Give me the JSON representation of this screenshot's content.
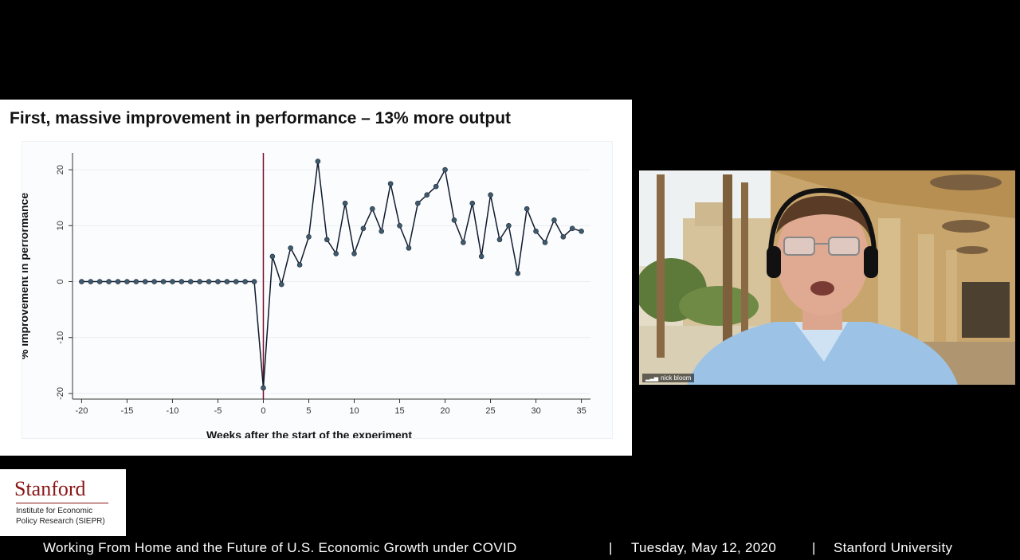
{
  "slide": {
    "title": "First, massive improvement in performance – 13% more output"
  },
  "chart_data": {
    "type": "line",
    "title": "First, massive improvement in performance – 13% more output",
    "xlabel": "Weeks after the start of the experiment",
    "ylabel": "% Improvement in performance",
    "xlim": [
      -21,
      36
    ],
    "ylim": [
      -21,
      23
    ],
    "xticks": [
      -20,
      -15,
      -10,
      -5,
      0,
      5,
      10,
      15,
      20,
      25,
      30,
      35
    ],
    "yticks": [
      20,
      10,
      0,
      -10,
      -20
    ],
    "grid": "horizontal",
    "vline_at": 0,
    "series": [
      {
        "x": [
          -20,
          -19,
          -18,
          -17,
          -16,
          -15,
          -14,
          -13,
          -12,
          -11,
          -10,
          -9,
          -8,
          -7,
          -6,
          -5,
          -4,
          -3,
          -2,
          -1,
          0,
          1,
          2,
          3,
          4,
          5,
          6,
          7,
          8,
          9,
          10,
          11,
          12,
          13,
          14,
          15,
          16,
          17,
          18,
          19,
          20,
          21,
          22,
          23,
          24,
          25,
          26,
          27,
          28,
          29,
          30,
          31,
          32,
          33,
          34,
          35
        ],
        "values": [
          0,
          0,
          0,
          0,
          0,
          0,
          0,
          0,
          0,
          0,
          0,
          0,
          0,
          0,
          0,
          0,
          0,
          0,
          0,
          0,
          -19,
          4.5,
          -0.5,
          6,
          3,
          8,
          21.5,
          7.5,
          5,
          14,
          5,
          9.5,
          13,
          9,
          17.5,
          10,
          6,
          14,
          15.5,
          17,
          20,
          11,
          7,
          14,
          4.5,
          15.5,
          7.5,
          10,
          1.5,
          13,
          9,
          7,
          11,
          8,
          9.5,
          9
        ]
      }
    ]
  },
  "video": {
    "participant_name": "nick bloom"
  },
  "logo": {
    "wordmark": "Stanford",
    "line1": "Institute for Economic",
    "line2": "Policy Research (SIEPR)"
  },
  "footer": {
    "event_title": "Working From Home and the Future of U.S. Economic Growth under COVID",
    "sep1": "|",
    "date": "Tuesday, May 12, 2020",
    "sep2": "|",
    "institution": "Stanford University"
  },
  "colors": {
    "line": "#0f1a2e",
    "marker": "#3f5a6c",
    "vline": "#7a1030",
    "stanford_red": "#8c1515"
  }
}
